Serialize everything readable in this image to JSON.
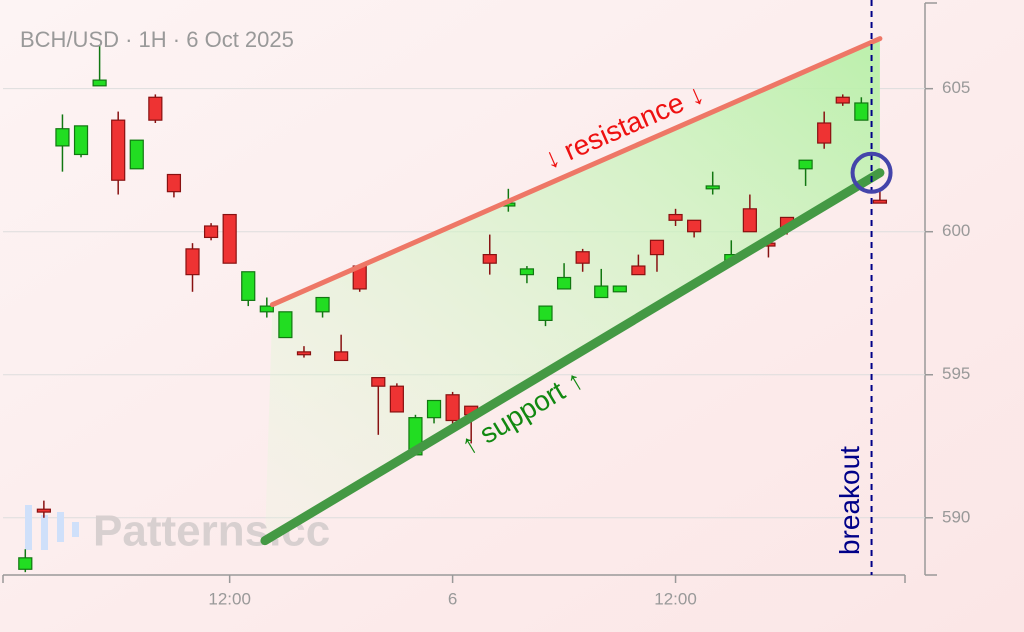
{
  "chart_data": {
    "type": "candlestick",
    "title": "BCH/USD · 1H · 6 Oct 2025",
    "watermark": "Patterns.cc",
    "x": [
      1,
      2,
      3,
      4,
      5,
      6,
      7,
      8,
      9,
      10,
      11,
      12,
      13,
      14,
      15,
      16,
      17,
      18,
      19,
      20,
      21,
      22,
      23,
      24,
      25,
      26,
      27,
      28,
      29,
      30,
      31,
      32,
      33,
      34,
      35,
      36,
      37,
      38,
      39,
      40,
      41,
      42,
      43,
      44,
      45,
      46,
      47
    ],
    "open": [
      588.2,
      590.3,
      603.0,
      602.7,
      605.1,
      603.9,
      602.2,
      604.7,
      602.0,
      599.4,
      600.2,
      600.6,
      597.6,
      597.2,
      596.3,
      595.8,
      597.2,
      595.8,
      598.8,
      594.9,
      594.6,
      592.2,
      593.5,
      594.3,
      593.9,
      599.2,
      600.9,
      598.5,
      596.9,
      598.0,
      599.3,
      597.7,
      597.9,
      598.8,
      599.7,
      600.6,
      600.4,
      601.5,
      599.0,
      600.8,
      599.6,
      600.5,
      602.2,
      603.8,
      604.7,
      603.9,
      601.1
    ],
    "high": [
      588.9,
      590.6,
      604.1,
      603.7,
      606.5,
      604.2,
      603.2,
      604.8,
      602.0,
      599.6,
      600.3,
      600.6,
      598.6,
      597.7,
      597.2,
      596.0,
      597.7,
      596.4,
      598.8,
      594.9,
      594.7,
      593.6,
      594.1,
      594.4,
      593.9,
      599.9,
      601.5,
      598.8,
      597.4,
      598.9,
      599.4,
      598.7,
      598.1,
      599.2,
      599.7,
      600.8,
      600.4,
      602.1,
      599.7,
      601.3,
      599.6,
      600.5,
      602.5,
      604.2,
      604.8,
      604.7,
      601.5
    ],
    "low": [
      588.1,
      590.0,
      602.1,
      602.6,
      605.1,
      601.3,
      602.2,
      603.8,
      601.2,
      597.9,
      599.7,
      598.9,
      597.4,
      597.0,
      596.3,
      595.6,
      597.0,
      595.5,
      597.9,
      592.9,
      593.7,
      592.2,
      593.3,
      593.2,
      592.6,
      598.5,
      600.7,
      598.2,
      596.7,
      598.0,
      598.6,
      597.7,
      597.9,
      598.5,
      598.6,
      600.2,
      599.8,
      601.3,
      599.0,
      600.0,
      599.1,
      599.9,
      601.6,
      602.9,
      604.4,
      603.9,
      601.0
    ],
    "close": [
      588.6,
      590.2,
      603.6,
      603.7,
      605.3,
      601.8,
      603.2,
      603.9,
      601.4,
      598.5,
      599.8,
      598.9,
      598.6,
      597.4,
      597.2,
      595.7,
      597.7,
      595.5,
      598.0,
      594.6,
      593.7,
      593.5,
      594.1,
      593.4,
      593.6,
      598.9,
      601.0,
      598.7,
      597.4,
      598.4,
      598.9,
      598.1,
      598.1,
      598.5,
      599.2,
      600.4,
      600.0,
      601.6,
      599.2,
      600.0,
      599.5,
      600.1,
      602.5,
      603.1,
      604.5,
      604.5,
      601.0
    ],
    "up_color": "#22dd22",
    "down_color": "#ee3333",
    "xlim": [
      -0.2,
      48.35
    ],
    "ylim": [
      588,
      608.1
    ],
    "xticks": [
      {
        "value": 12,
        "label": "12:00"
      },
      {
        "value": 24,
        "label": "6"
      },
      {
        "value": 36,
        "label": "12:00"
      }
    ],
    "yticks": [
      590,
      595,
      600,
      605
    ],
    "grid": true,
    "resistance": {
      "label": "↓ resistance ↓",
      "color": "#ee7766",
      "x": [
        14.3,
        47
      ],
      "values": [
        597.45,
        606.75
      ]
    },
    "support": {
      "label": "↑ support ↑",
      "color": "#449944",
      "x": [
        13.9,
        47
      ],
      "values": [
        589.2,
        602.06
      ]
    },
    "breakout": {
      "label": "breakout",
      "color": "#000088",
      "x": 46.55
    }
  }
}
